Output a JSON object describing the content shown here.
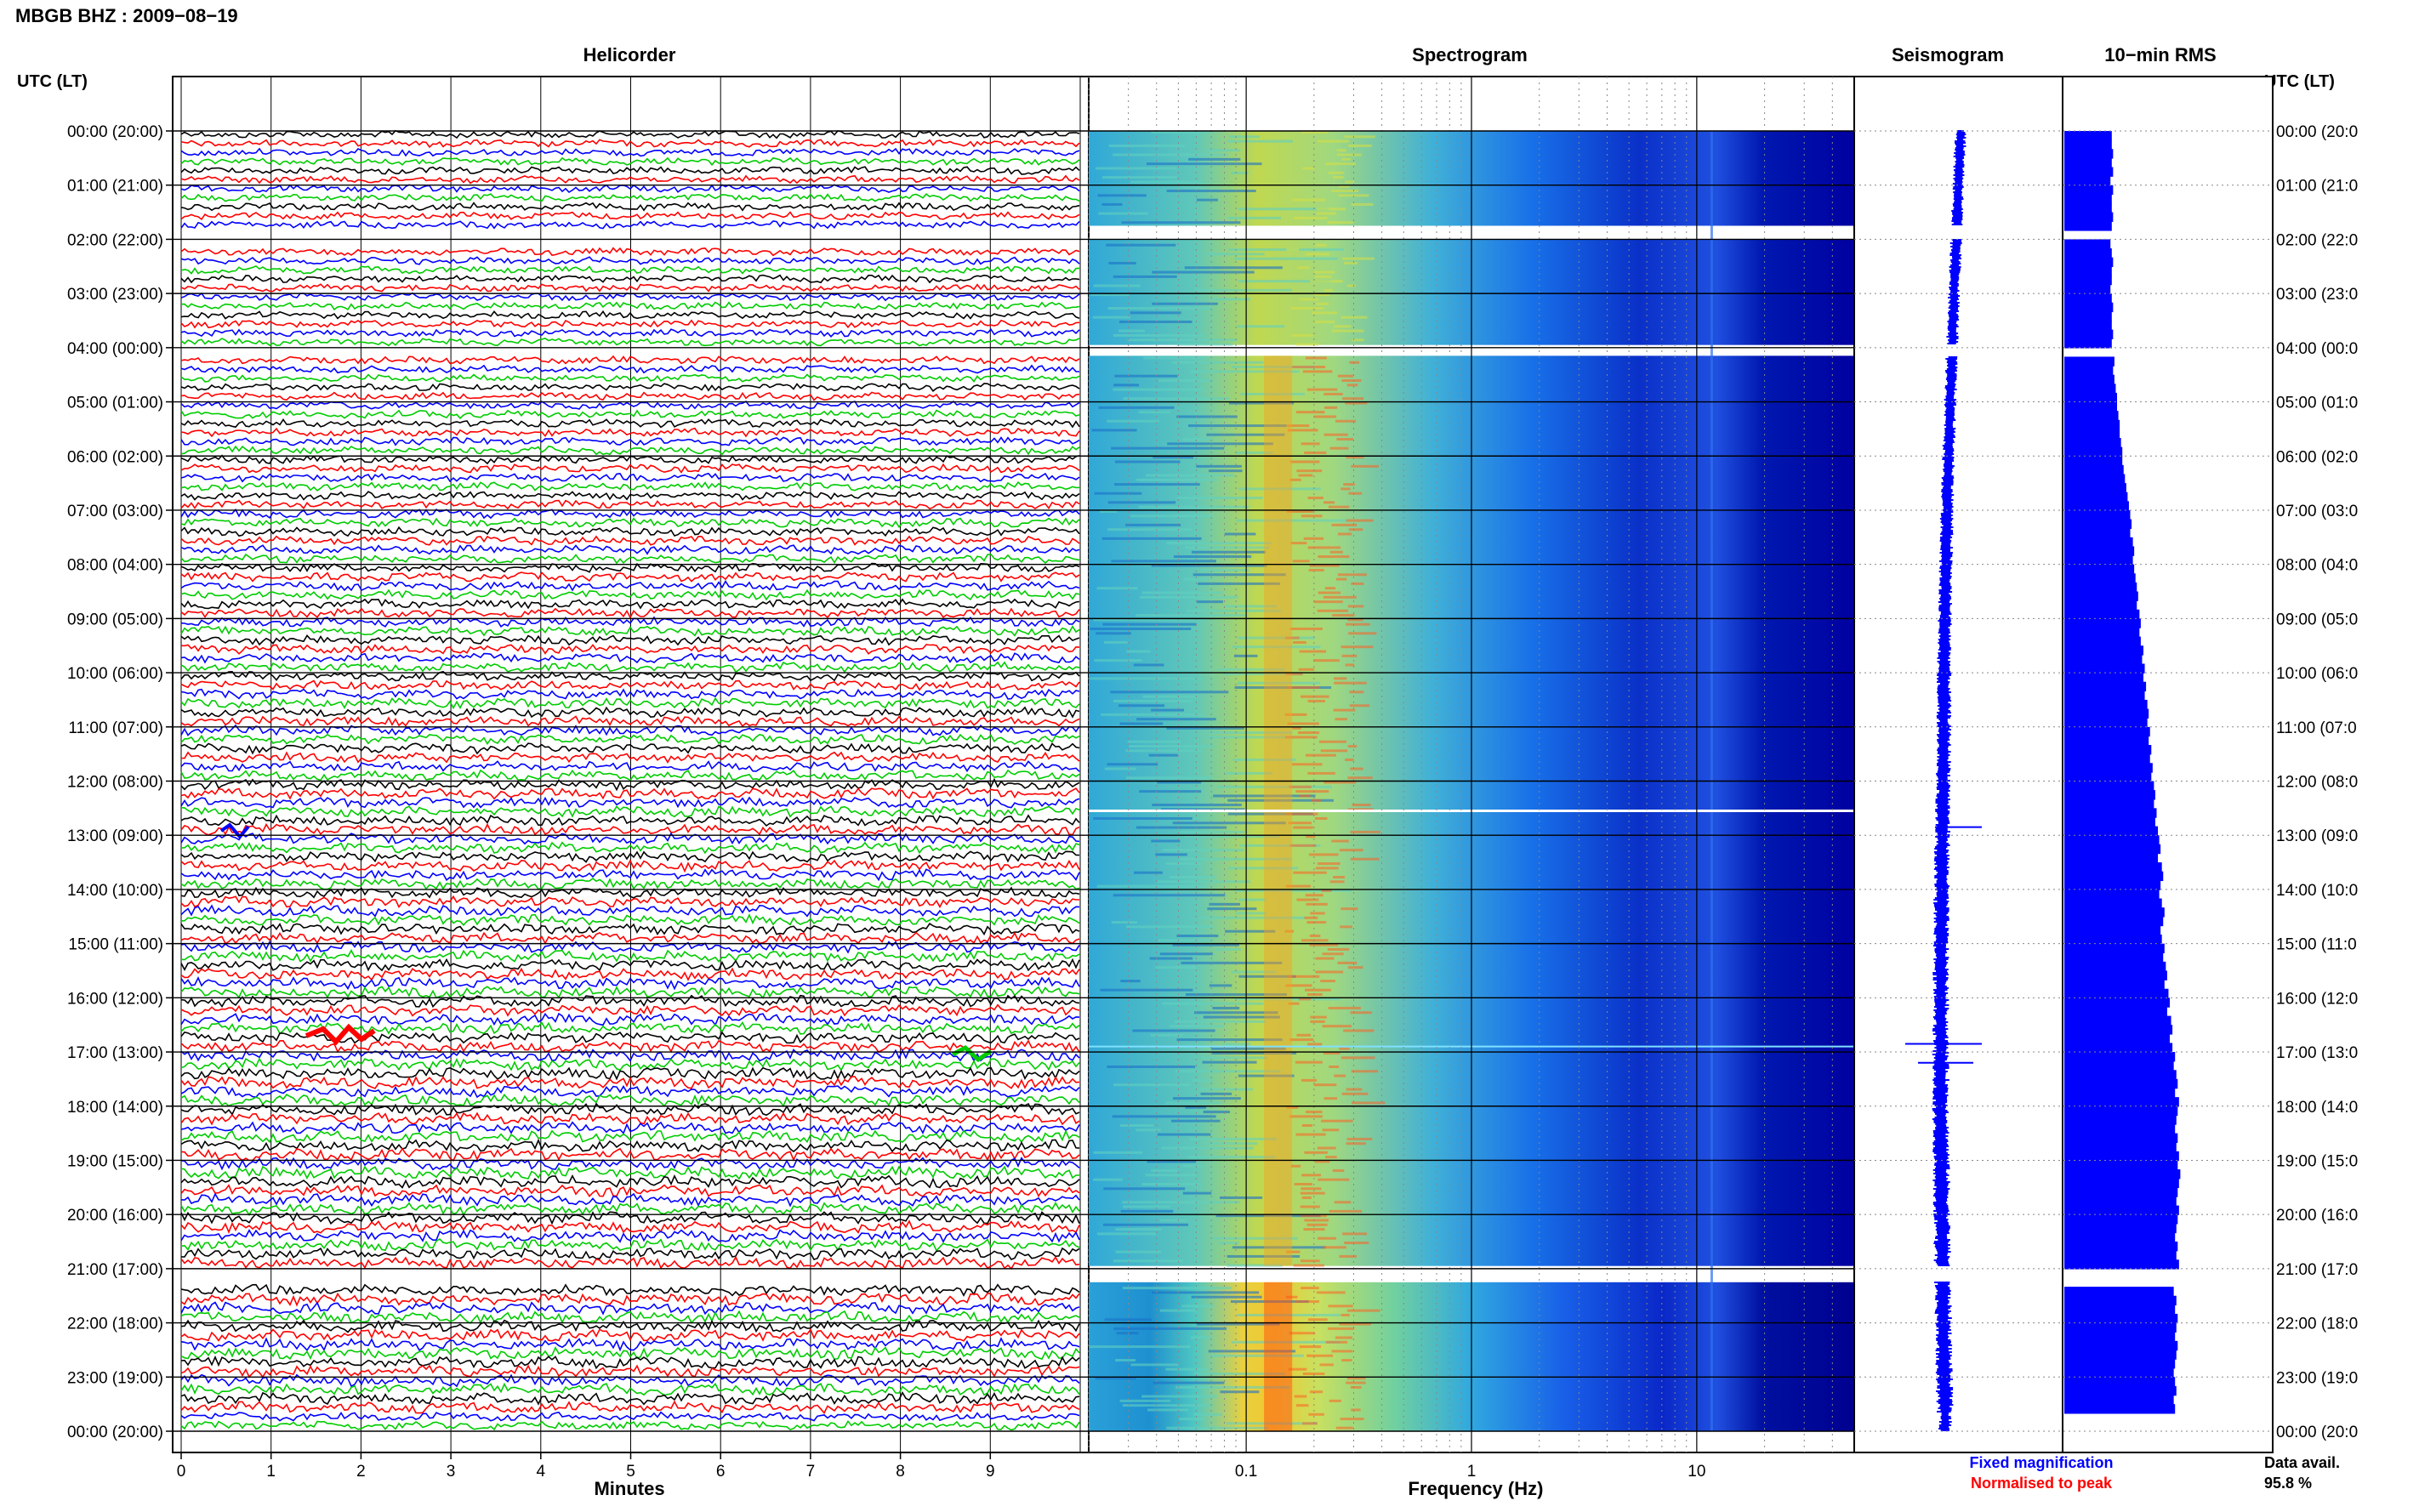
{
  "header": {
    "station_title": "MBGB BHZ : 2009−08−19"
  },
  "panels": {
    "helicorder": "Helicorder",
    "spectrogram": "Spectrogram",
    "seismogram": "Seismogram",
    "rms": "10−min RMS"
  },
  "axes": {
    "left_title": "UTC (LT)",
    "right_title": "UTC (LT)",
    "minutes_label": "Minutes",
    "frequency_label": "Frequency (Hz)"
  },
  "legend": {
    "fixed": "Fixed magnification",
    "normalised": "Normalised to peak",
    "fixed_color": "#0000ff",
    "normalised_color": "#ff0000"
  },
  "data_avail": {
    "label": "Data avail.",
    "value": "95.8 %"
  },
  "colors": {
    "trace_cycle": [
      "#000000",
      "#ff0000",
      "#0000ff",
      "#00cc00"
    ],
    "spectrogram_low": "#0000a0",
    "spectrogram_high": "#ff3000",
    "seismogram": "#0000ff",
    "rms_bar": "#0000ff"
  },
  "chart_data": {
    "type": "heatmap",
    "helicorder": {
      "minute_ticks": [
        "0",
        "1",
        "2",
        "3",
        "4",
        "5",
        "6",
        "7",
        "8",
        "9"
      ],
      "minutes_range": [
        0,
        10
      ],
      "hour_labels": [
        "00:00 (20:00)",
        "01:00 (21:00)",
        "02:00 (22:00)",
        "03:00 (23:00)",
        "04:00 (00:00)",
        "05:00 (01:00)",
        "06:00 (02:00)",
        "07:00 (03:00)",
        "08:00 (04:00)",
        "09:00 (05:00)",
        "10:00 (06:00)",
        "11:00 (07:00)",
        "12:00 (08:00)",
        "13:00 (09:00)",
        "14:00 (10:00)",
        "15:00 (11:00)",
        "16:00 (12:00)",
        "17:00 (13:00)",
        "18:00 (14:00)",
        "19:00 (15:00)",
        "20:00 (16:00)",
        "21:00 (17:00)",
        "22:00 (18:00)",
        "23:00 (19:00)",
        "00:00 (20:00)"
      ],
      "right_hour_labels": [
        "00:00 (20:0",
        "01:00 (21:0",
        "02:00 (22:0",
        "03:00 (23:0",
        "04:00 (00:0",
        "05:00 (01:0",
        "06:00 (02:0",
        "07:00 (03:0",
        "08:00 (04:0",
        "09:00 (05:0",
        "10:00 (06:0",
        "11:00 (07:0",
        "12:00 (08:0",
        "13:00 (09:0",
        "14:00 (10:0",
        "15:00 (11:0",
        "16:00 (12:0",
        "17:00 (13:0",
        "18:00 (14:0",
        "19:00 (15:0",
        "20:00 (16:0",
        "21:00 (17:0",
        "22:00 (18:0",
        "23:00 (19:0",
        "00:00 (20:0"
      ],
      "hours_range": [
        0,
        24
      ],
      "traces_per_hour": 6
    },
    "spectrogram": {
      "frequency_ticks": [
        "0.1",
        "1",
        "10"
      ],
      "frequency_range_hz": [
        0.02,
        50
      ],
      "scale": "log",
      "peak_band_hz": [
        0.12,
        0.16
      ]
    },
    "data_gaps_hours": [
      [
        1.75,
        2.0
      ],
      [
        3.95,
        4.15
      ],
      [
        20.95,
        21.25
      ]
    ],
    "events": [
      {
        "hour": 12.55,
        "note": "spike"
      },
      {
        "hour": 16.85,
        "note": "earthquake"
      }
    ],
    "rms_10min_relative": [
      0.36,
      0.36,
      0.37,
      0.36,
      0.37,
      0.35,
      0.37,
      0.36,
      0.36,
      0.37,
      0.36,
      0.36,
      0.35,
      0.36,
      0.37,
      0.36,
      0.36,
      0.35,
      0.36,
      0.37,
      0.36,
      0.36,
      0.37,
      0.36,
      0.36,
      0.38,
      0.37,
      0.38,
      0.39,
      0.4,
      0.4,
      0.41,
      0.42,
      0.42,
      0.43,
      0.44,
      0.44,
      0.45,
      0.46,
      0.47,
      0.48,
      0.49,
      0.5,
      0.51,
      0.5,
      0.52,
      0.53,
      0.52,
      0.53,
      0.54,
      0.55,
      0.56,
      0.55,
      0.57,
      0.58,
      0.57,
      0.58,
      0.6,
      0.59,
      0.61,
      0.6,
      0.62,
      0.61,
      0.63,
      0.64,
      0.63,
      0.65,
      0.64,
      0.66,
      0.65,
      0.67,
      0.66,
      0.68,
      0.69,
      0.68,
      0.7,
      0.69,
      0.71,
      0.72,
      0.73,
      0.71,
      0.74,
      0.75,
      0.73,
      0.72,
      0.74,
      0.76,
      0.75,
      0.73,
      0.74,
      0.76,
      0.75,
      0.77,
      0.78,
      0.76,
      0.79,
      0.8,
      0.78,
      0.81,
      0.82,
      0.8,
      0.82,
      0.84,
      0.83,
      0.85,
      0.86,
      0.84,
      0.87,
      0.86,
      0.85,
      0.84,
      0.86,
      0.85,
      0.87,
      0.86,
      0.88,
      0.87,
      0.86,
      0.85,
      0.87,
      0.86,
      0.85,
      0.84,
      0.86,
      0.85,
      0.87,
      0.86,
      0.84,
      0.83,
      0.85,
      0.84,
      0.86,
      0.85,
      0.84,
      0.86,
      0.85,
      0.84,
      0.83,
      0.84,
      0.85,
      0.83,
      0.84
    ]
  }
}
